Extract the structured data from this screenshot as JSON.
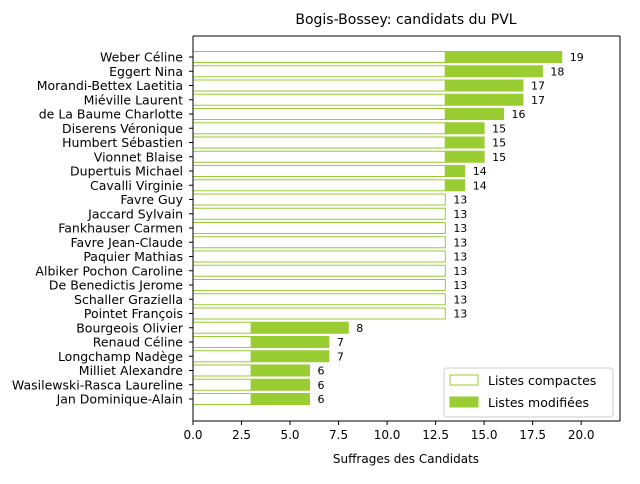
{
  "chart_data": {
    "type": "bar",
    "orientation": "horizontal",
    "stacked": true,
    "title": "Bogis-Bossey: candidats du PVL",
    "xlabel": "Suffrages des Candidats",
    "ylabel": "",
    "xlim": [
      0,
      22
    ],
    "xticks": [
      "0.0",
      "2.5",
      "5.0",
      "7.5",
      "10.0",
      "12.5",
      "15.0",
      "17.5",
      "20.0"
    ],
    "xtick_values": [
      0,
      2.5,
      5,
      7.5,
      10,
      12.5,
      15,
      17.5,
      20
    ],
    "grid": false,
    "legend_position": "bottom-right",
    "colors": {
      "bar": "#9acd32",
      "axis": "#000000",
      "background": "#ffffff"
    },
    "categories": [
      "Weber Céline",
      "Eggert Nina",
      "Morandi-Bettex Laetitia",
      "Miéville Laurent",
      "de La Baume Charlotte",
      "Diserens Véronique",
      "Humbert Sébastien",
      "Vionnet Blaise",
      "Dupertuis Michael",
      "Cavalli Virginie",
      "Favre Guy",
      "Jaccard Sylvain",
      "Fankhauser Carmen",
      "Favre Jean-Claude",
      "Paquier Mathias",
      "Albiker Pochon Caroline",
      "De Benedictis Jerome",
      "Schaller Graziella",
      "Pointet François",
      "Bourgeois Olivier",
      "Renaud Céline",
      "Longchamp Nadège",
      "Milliet Alexandre",
      "Wasilewski-Rasca Laureline",
      "Jan Dominique-Alain"
    ],
    "series": [
      {
        "name": "Listes compactes",
        "style": "outline",
        "values": [
          13,
          13,
          13,
          13,
          13,
          13,
          13,
          13,
          13,
          13,
          13,
          13,
          13,
          13,
          13,
          13,
          13,
          13,
          13,
          3,
          3,
          3,
          3,
          3,
          3
        ]
      },
      {
        "name": "Listes modifiées",
        "style": "filled",
        "values": [
          6,
          5,
          4,
          4,
          3,
          2,
          2,
          2,
          1,
          1,
          0,
          0,
          0,
          0,
          0,
          0,
          0,
          0,
          0,
          5,
          4,
          4,
          3,
          3,
          3
        ]
      }
    ],
    "totals": [
      19,
      18,
      17,
      17,
      16,
      15,
      15,
      15,
      14,
      14,
      13,
      13,
      13,
      13,
      13,
      13,
      13,
      13,
      13,
      8,
      7,
      7,
      6,
      6,
      6
    ]
  }
}
